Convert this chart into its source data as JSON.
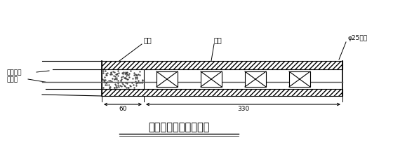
{
  "title": "周边眼装药结构示意图",
  "label_paoni": "炮泥",
  "label_zhupian": "竹片",
  "label_yaojuan": "φ25药卷",
  "label_leiguan": "毫秒雷管",
  "label_daobaso": "导爆索",
  "dim_60": "60",
  "dim_330": "330",
  "bg_color": "#ffffff",
  "line_color": "#000000",
  "fig_width": 5.6,
  "fig_height": 2.17,
  "dpi": 100
}
